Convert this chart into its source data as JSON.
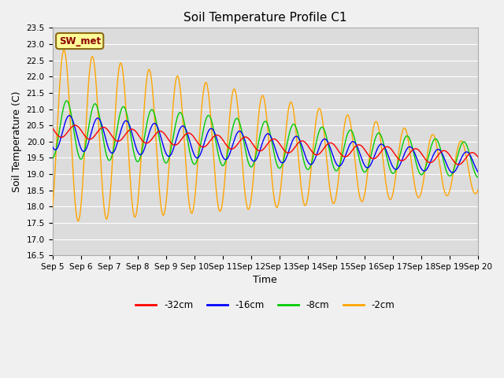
{
  "title": "Soil Temperature Profile C1",
  "xlabel": "Time",
  "ylabel": "Soil Temperature (C)",
  "ylim": [
    16.5,
    23.5
  ],
  "xlim": [
    0,
    15
  ],
  "x_tick_labels": [
    "Sep 5",
    "Sep 6",
    "Sep 7",
    "Sep 8",
    "Sep 9",
    "Sep 10",
    "Sep 11",
    "Sep 12",
    "Sep 13",
    "Sep 14",
    "Sep 15",
    "Sep 16",
    "Sep 17",
    "Sep 18",
    "Sep 19",
    "Sep 20"
  ],
  "annotation": "SW_met",
  "annotation_color": "#8B0000",
  "annotation_bg": "#FFFF99",
  "annotation_border": "#8B6914",
  "colors": {
    "-32cm": "#FF0000",
    "-16cm": "#0000FF",
    "-8cm": "#00CC00",
    "-2cm": "#FFA500"
  },
  "background_color": "#DCDCDC",
  "fig_background": "#F0F0F0",
  "grid_color": "#FFFFFF",
  "title_fontsize": 11,
  "axis_fontsize": 9,
  "tick_fontsize": 7.5
}
